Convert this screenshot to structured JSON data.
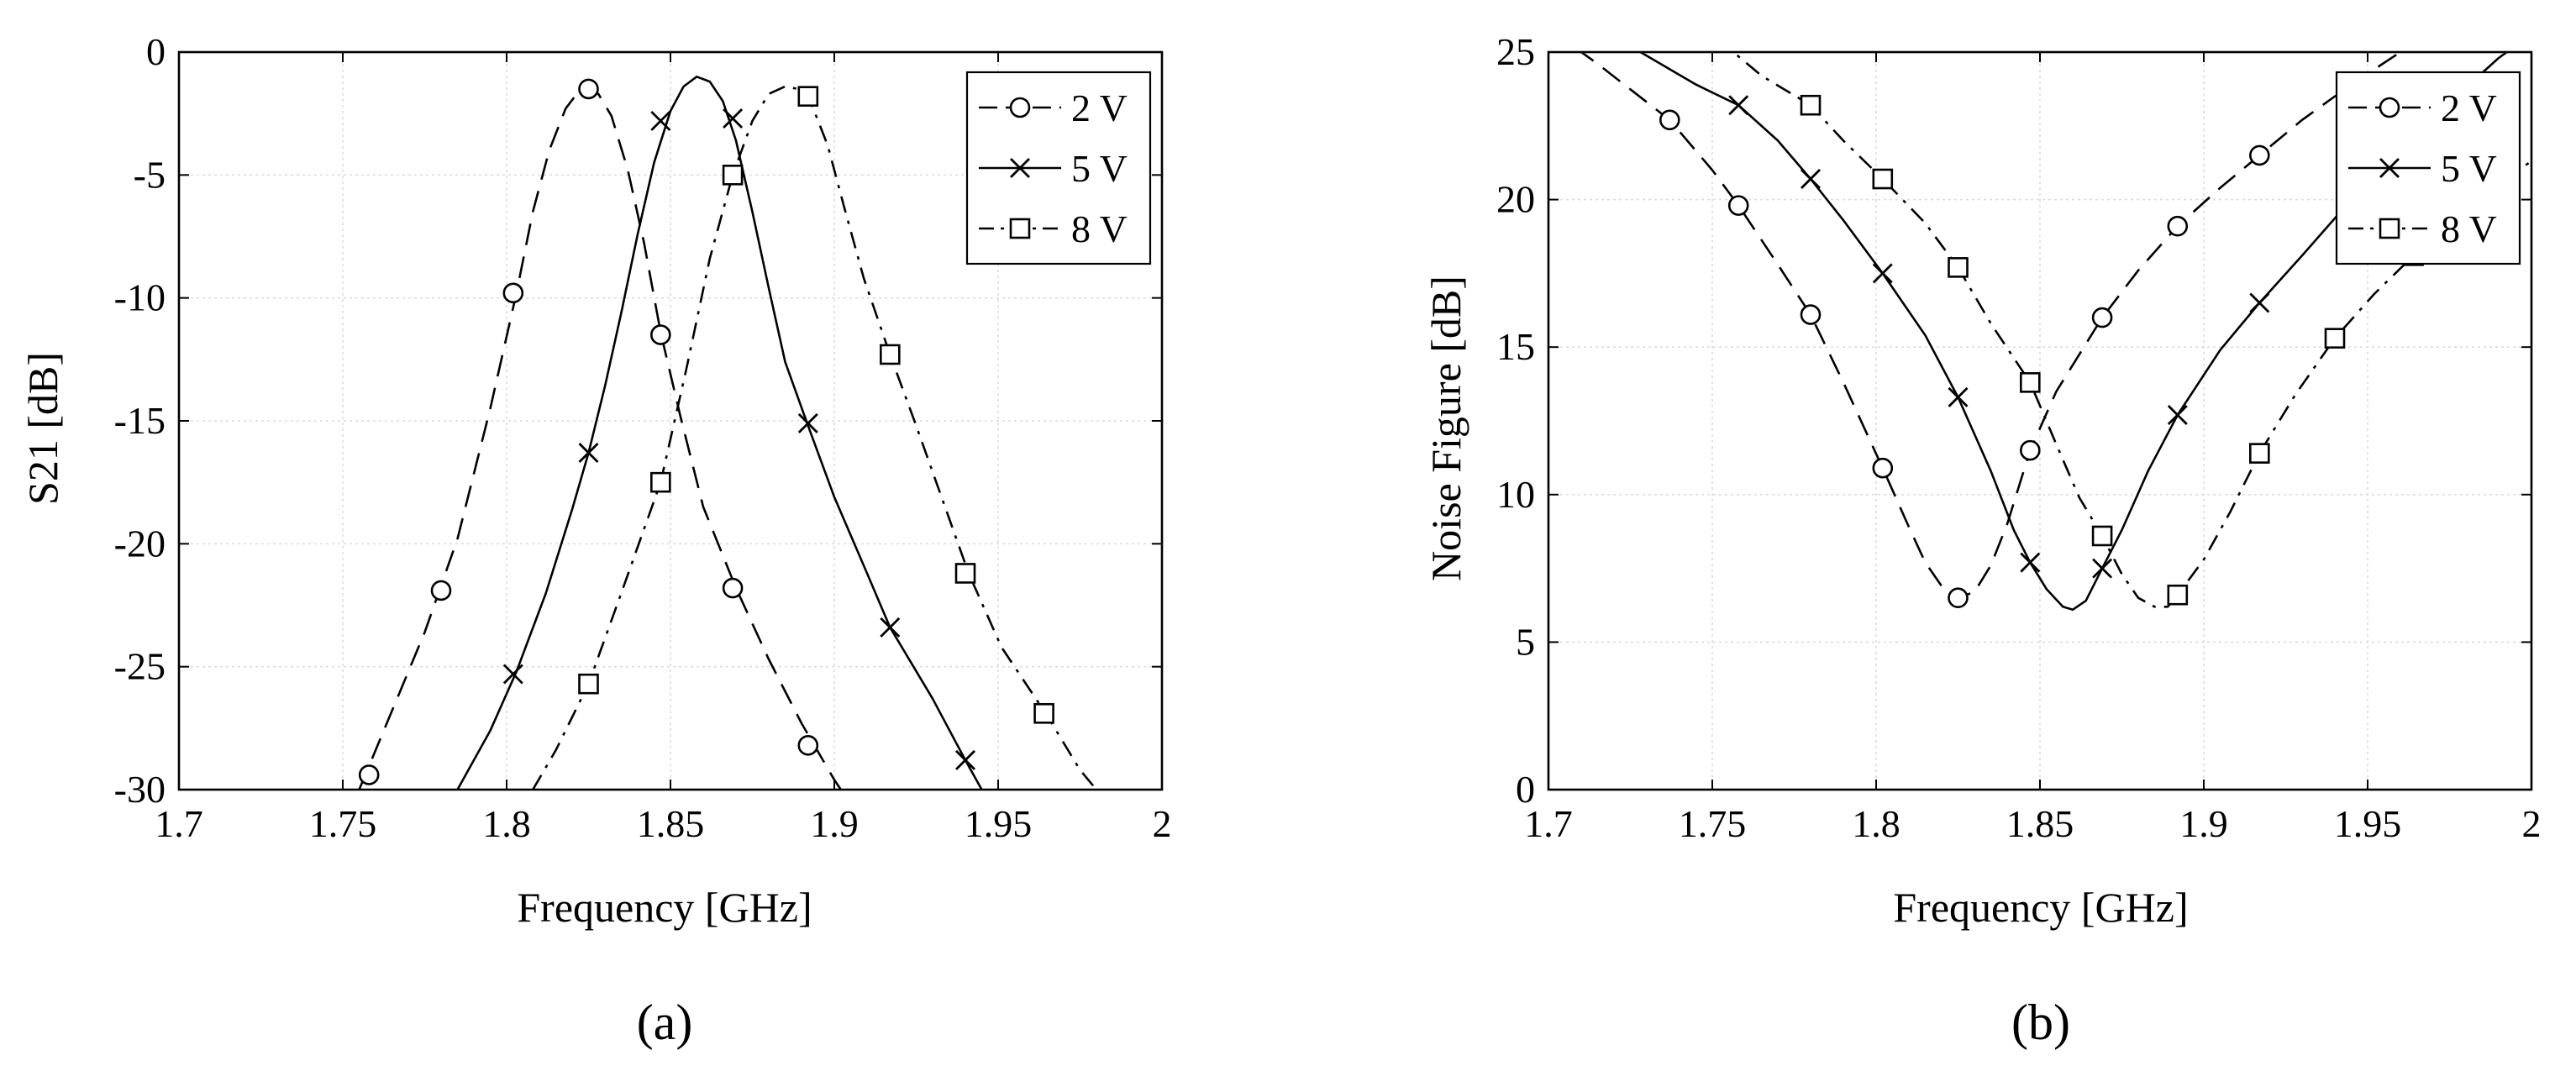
{
  "chart_data": [
    {
      "type": "line",
      "panel_label": "(a)",
      "xlabel": "Frequency [GHz]",
      "ylabel": "S21 [dB]",
      "xlim": [
        1.7,
        2.0
      ],
      "ylim": [
        -30,
        0
      ],
      "xticks": [
        "1.7",
        "1.75",
        "1.8",
        "1.85",
        "1.9",
        "1.95",
        "2"
      ],
      "yticks": [
        "-30",
        "-25",
        "-20",
        "-15",
        "-10",
        "-5",
        "0"
      ],
      "grid": true,
      "legend": "top-right",
      "series": [
        {
          "name": "2 V",
          "line": "dashed",
          "marker": "circle",
          "curve": [
            [
              1.755,
              -30
            ],
            [
              1.765,
              -26.8
            ],
            [
              1.775,
              -23.6
            ],
            [
              1.785,
              -19.8
            ],
            [
              1.795,
              -14.5
            ],
            [
              1.803,
              -9.8
            ],
            [
              1.808,
              -6.5
            ],
            [
              1.813,
              -4.0
            ],
            [
              1.818,
              -2.3
            ],
            [
              1.822,
              -1.6
            ],
            [
              1.825,
              -1.5
            ],
            [
              1.828,
              -1.7
            ],
            [
              1.832,
              -2.6
            ],
            [
              1.837,
              -4.8
            ],
            [
              1.842,
              -7.8
            ],
            [
              1.847,
              -11.4
            ],
            [
              1.853,
              -14.8
            ],
            [
              1.86,
              -18.5
            ],
            [
              1.87,
              -21.8
            ],
            [
              1.88,
              -24.7
            ],
            [
              1.89,
              -27.3
            ],
            [
              1.9,
              -29.6
            ],
            [
              1.902,
              -30
            ]
          ],
          "markers": [
            [
              1.758,
              -29.4
            ],
            [
              1.78,
              -21.9
            ],
            [
              1.802,
              -9.8
            ],
            [
              1.825,
              -1.5
            ],
            [
              1.847,
              -11.5
            ],
            [
              1.869,
              -21.8
            ],
            [
              1.892,
              -28.2
            ]
          ]
        },
        {
          "name": "5 V",
          "line": "solid",
          "marker": "x",
          "curve": [
            [
              1.785,
              -30
            ],
            [
              1.795,
              -27.6
            ],
            [
              1.803,
              -25.2
            ],
            [
              1.812,
              -22.0
            ],
            [
              1.82,
              -18.6
            ],
            [
              1.825,
              -16.3
            ],
            [
              1.83,
              -13.6
            ],
            [
              1.835,
              -10.6
            ],
            [
              1.84,
              -7.4
            ],
            [
              1.845,
              -4.5
            ],
            [
              1.85,
              -2.4
            ],
            [
              1.854,
              -1.4
            ],
            [
              1.858,
              -1.0
            ],
            [
              1.862,
              -1.2
            ],
            [
              1.866,
              -2.0
            ],
            [
              1.87,
              -3.6
            ],
            [
              1.875,
              -6.5
            ],
            [
              1.88,
              -9.6
            ],
            [
              1.885,
              -12.6
            ],
            [
              1.892,
              -15.2
            ],
            [
              1.9,
              -18.1
            ],
            [
              1.91,
              -21.2
            ],
            [
              1.917,
              -23.4
            ],
            [
              1.93,
              -26.3
            ],
            [
              1.94,
              -28.8
            ],
            [
              1.945,
              -30
            ]
          ],
          "markers": [
            [
              1.802,
              -25.3
            ],
            [
              1.825,
              -16.3
            ],
            [
              1.847,
              -2.8
            ],
            [
              1.869,
              -2.7
            ],
            [
              1.892,
              -15.1
            ],
            [
              1.917,
              -23.4
            ],
            [
              1.94,
              -28.8
            ]
          ]
        },
        {
          "name": "8 V",
          "line": "dash-dot",
          "marker": "square",
          "curve": [
            [
              1.808,
              -30
            ],
            [
              1.815,
              -28.4
            ],
            [
              1.825,
              -25.7
            ],
            [
              1.835,
              -22.0
            ],
            [
              1.847,
              -17.5
            ],
            [
              1.855,
              -12.8
            ],
            [
              1.862,
              -8.4
            ],
            [
              1.869,
              -5.0
            ],
            [
              1.875,
              -2.8
            ],
            [
              1.88,
              -1.7
            ],
            [
              1.885,
              -1.4
            ],
            [
              1.889,
              -1.5
            ],
            [
              1.893,
              -2.1
            ],
            [
              1.898,
              -3.8
            ],
            [
              1.903,
              -6.3
            ],
            [
              1.909,
              -9.2
            ],
            [
              1.917,
              -12.3
            ],
            [
              1.925,
              -15.2
            ],
            [
              1.933,
              -18.2
            ],
            [
              1.941,
              -21.2
            ],
            [
              1.951,
              -24.2
            ],
            [
              1.965,
              -27.0
            ],
            [
              1.975,
              -29.2
            ],
            [
              1.98,
              -30
            ]
          ],
          "markers": [
            [
              1.825,
              -25.7
            ],
            [
              1.847,
              -17.5
            ],
            [
              1.869,
              -5.0
            ],
            [
              1.892,
              -1.8
            ],
            [
              1.917,
              -12.3
            ],
            [
              1.94,
              -21.2
            ],
            [
              1.964,
              -26.9
            ]
          ]
        }
      ]
    },
    {
      "type": "line",
      "panel_label": "(b)",
      "xlabel": "Frequency [GHz]",
      "ylabel": "Noise Figure [dB]",
      "xlim": [
        1.7,
        2.0
      ],
      "ylim": [
        0,
        25
      ],
      "xticks": [
        "1.7",
        "1.75",
        "1.8",
        "1.85",
        "1.9",
        "1.95",
        "2"
      ],
      "yticks": [
        "0",
        "5",
        "10",
        "15",
        "20",
        "25"
      ],
      "grid": true,
      "legend": "top-right",
      "series": [
        {
          "name": "2 V",
          "line": "dashed",
          "marker": "circle",
          "curve": [
            [
              1.7,
              25.8
            ],
            [
              1.715,
              24.6
            ],
            [
              1.737,
              22.7
            ],
            [
              1.75,
              21.0
            ],
            [
              1.758,
              19.8
            ],
            [
              1.77,
              17.8
            ],
            [
              1.78,
              16.1
            ],
            [
              1.79,
              13.8
            ],
            [
              1.802,
              10.9
            ],
            [
              1.81,
              8.9
            ],
            [
              1.815,
              7.7
            ],
            [
              1.82,
              6.9
            ],
            [
              1.825,
              6.5
            ],
            [
              1.83,
              6.7
            ],
            [
              1.835,
              7.6
            ],
            [
              1.84,
              9.0
            ],
            [
              1.847,
              11.5
            ],
            [
              1.855,
              13.5
            ],
            [
              1.869,
              16.0
            ],
            [
              1.88,
              17.6
            ],
            [
              1.892,
              19.1
            ],
            [
              1.905,
              20.4
            ],
            [
              1.917,
              21.5
            ],
            [
              1.93,
              22.7
            ],
            [
              1.945,
              23.9
            ],
            [
              1.96,
              25.0
            ]
          ],
          "markers": [
            [
              1.737,
              22.7
            ],
            [
              1.758,
              19.8
            ],
            [
              1.78,
              16.1
            ],
            [
              1.802,
              10.9
            ],
            [
              1.825,
              6.5
            ],
            [
              1.847,
              11.5
            ],
            [
              1.869,
              16.0
            ],
            [
              1.892,
              19.1
            ],
            [
              1.917,
              21.5
            ]
          ]
        },
        {
          "name": "5 V",
          "line": "solid",
          "marker": "x",
          "curve": [
            [
              1.7,
              27.5
            ],
            [
              1.725,
              25.2
            ],
            [
              1.745,
              23.9
            ],
            [
              1.758,
              23.2
            ],
            [
              1.77,
              22.0
            ],
            [
              1.78,
              20.7
            ],
            [
              1.79,
              19.3
            ],
            [
              1.802,
              17.5
            ],
            [
              1.815,
              15.4
            ],
            [
              1.825,
              13.3
            ],
            [
              1.835,
              10.8
            ],
            [
              1.842,
              8.8
            ],
            [
              1.847,
              7.7
            ],
            [
              1.852,
              6.8
            ],
            [
              1.857,
              6.2
            ],
            [
              1.86,
              6.1
            ],
            [
              1.864,
              6.4
            ],
            [
              1.869,
              7.5
            ],
            [
              1.875,
              8.8
            ],
            [
              1.883,
              10.8
            ],
            [
              1.892,
              12.7
            ],
            [
              1.905,
              14.9
            ],
            [
              1.917,
              16.5
            ],
            [
              1.93,
              18.1
            ],
            [
              1.945,
              20.0
            ],
            [
              1.96,
              21.7
            ],
            [
              1.975,
              23.3
            ],
            [
              1.99,
              24.8
            ],
            [
              2.0,
              25.6
            ]
          ],
          "markers": [
            [
              1.758,
              23.2
            ],
            [
              1.78,
              20.7
            ],
            [
              1.802,
              17.5
            ],
            [
              1.825,
              13.3
            ],
            [
              1.847,
              7.7
            ],
            [
              1.869,
              7.5
            ],
            [
              1.892,
              12.7
            ],
            [
              1.917,
              16.5
            ]
          ]
        },
        {
          "name": "8 V",
          "line": "dash-dot",
          "marker": "square",
          "curve": [
            [
              1.72,
              29.0
            ],
            [
              1.75,
              25.6
            ],
            [
              1.765,
              24.2
            ],
            [
              1.78,
              23.2
            ],
            [
              1.79,
              22.0
            ],
            [
              1.802,
              20.7
            ],
            [
              1.815,
              19.2
            ],
            [
              1.825,
              17.7
            ],
            [
              1.835,
              15.8
            ],
            [
              1.847,
              13.8
            ],
            [
              1.855,
              11.7
            ],
            [
              1.862,
              9.9
            ],
            [
              1.869,
              8.6
            ],
            [
              1.875,
              7.3
            ],
            [
              1.88,
              6.5
            ],
            [
              1.885,
              6.2
            ],
            [
              1.889,
              6.2
            ],
            [
              1.892,
              6.6
            ],
            [
              1.9,
              7.8
            ],
            [
              1.908,
              9.4
            ],
            [
              1.917,
              11.4
            ],
            [
              1.928,
              13.4
            ],
            [
              1.94,
              15.3
            ],
            [
              1.952,
              16.8
            ],
            [
              1.964,
              18.1
            ],
            [
              1.98,
              19.8
            ],
            [
              2.0,
              21.3
            ]
          ],
          "markers": [
            [
              1.78,
              23.2
            ],
            [
              1.802,
              20.7
            ],
            [
              1.825,
              17.7
            ],
            [
              1.847,
              13.8
            ],
            [
              1.869,
              8.6
            ],
            [
              1.892,
              6.6
            ],
            [
              1.917,
              11.4
            ],
            [
              1.94,
              15.3
            ],
            [
              1.964,
              18.1
            ]
          ]
        }
      ]
    }
  ]
}
